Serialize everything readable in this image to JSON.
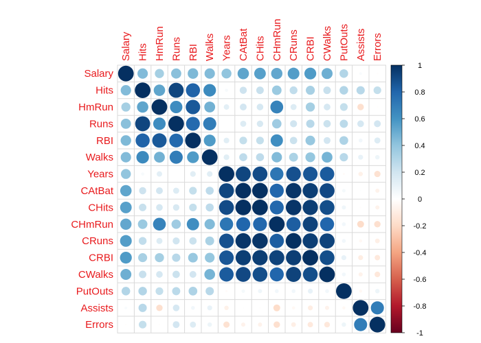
{
  "chart_data": {
    "type": "heatmap",
    "subtype": "correlation-circle",
    "variables": [
      "Salary",
      "Hits",
      "HmRun",
      "Runs",
      "RBI",
      "Walks",
      "Years",
      "CAtBat",
      "CHits",
      "CHmRun",
      "CRuns",
      "CRBI",
      "CWalks",
      "PutOuts",
      "Assists",
      "Errors"
    ],
    "matrix": [
      [
        1.0,
        0.44,
        0.34,
        0.42,
        0.45,
        0.44,
        0.4,
        0.53,
        0.55,
        0.52,
        0.56,
        0.57,
        0.49,
        0.3,
        0.03,
        -0.01
      ],
      [
        0.44,
        1.0,
        0.53,
        0.92,
        0.81,
        0.64,
        0.04,
        0.21,
        0.23,
        0.37,
        0.25,
        0.33,
        0.23,
        0.3,
        0.28,
        0.24
      ],
      [
        0.34,
        0.53,
        1.0,
        0.63,
        0.85,
        0.48,
        0.12,
        0.19,
        0.18,
        0.67,
        0.15,
        0.34,
        0.18,
        0.24,
        -0.17,
        -0.01
      ],
      [
        0.42,
        0.92,
        0.63,
        1.0,
        0.78,
        0.7,
        0.0,
        0.15,
        0.17,
        0.36,
        0.2,
        0.28,
        0.22,
        0.27,
        0.18,
        0.19
      ],
      [
        0.45,
        0.81,
        0.85,
        0.78,
        1.0,
        0.57,
        0.13,
        0.24,
        0.24,
        0.62,
        0.22,
        0.38,
        0.19,
        0.31,
        0.06,
        0.15
      ],
      [
        0.44,
        0.64,
        0.48,
        0.7,
        0.57,
        1.0,
        0.13,
        0.26,
        0.26,
        0.44,
        0.32,
        0.39,
        0.47,
        0.28,
        0.1,
        0.08
      ],
      [
        0.4,
        0.04,
        0.12,
        0.0,
        0.13,
        0.13,
        1.0,
        0.92,
        0.9,
        0.73,
        0.88,
        0.86,
        0.84,
        -0.02,
        -0.08,
        -0.16
      ],
      [
        0.53,
        0.21,
        0.19,
        0.15,
        0.24,
        0.26,
        0.92,
        1.0,
        1.0,
        0.8,
        0.98,
        0.95,
        0.91,
        0.05,
        0.01,
        -0.07
      ],
      [
        0.55,
        0.23,
        0.18,
        0.17,
        0.24,
        0.26,
        0.9,
        1.0,
        1.0,
        0.79,
        0.98,
        0.95,
        0.89,
        0.07,
        -0.01,
        -0.07
      ],
      [
        0.52,
        0.37,
        0.67,
        0.36,
        0.62,
        0.44,
        0.73,
        0.8,
        0.79,
        1.0,
        0.83,
        0.93,
        0.8,
        0.06,
        -0.19,
        -0.17
      ],
      [
        0.56,
        0.25,
        0.15,
        0.2,
        0.22,
        0.32,
        0.88,
        0.98,
        0.98,
        0.83,
        1.0,
        0.95,
        0.93,
        0.06,
        -0.04,
        -0.09
      ],
      [
        0.57,
        0.33,
        0.34,
        0.28,
        0.38,
        0.39,
        0.86,
        0.95,
        0.95,
        0.93,
        0.95,
        1.0,
        0.89,
        0.1,
        -0.1,
        -0.12
      ],
      [
        0.49,
        0.23,
        0.18,
        0.22,
        0.19,
        0.47,
        0.84,
        0.91,
        0.89,
        0.8,
        0.93,
        0.89,
        1.0,
        0.06,
        -0.07,
        -0.13
      ],
      [
        0.3,
        0.3,
        0.24,
        0.27,
        0.31,
        0.28,
        -0.02,
        0.05,
        0.07,
        0.06,
        0.06,
        0.1,
        0.06,
        1.0,
        -0.04,
        0.08
      ],
      [
        0.03,
        0.28,
        -0.17,
        0.18,
        0.06,
        0.1,
        -0.08,
        0.01,
        -0.01,
        -0.19,
        -0.04,
        -0.1,
        -0.07,
        -0.04,
        1.0,
        0.7
      ],
      [
        -0.01,
        0.24,
        -0.01,
        0.19,
        0.15,
        0.08,
        -0.16,
        -0.07,
        -0.07,
        -0.17,
        -0.09,
        -0.12,
        -0.13,
        0.08,
        0.7,
        1.0
      ]
    ],
    "colorbar": {
      "range": [
        -1,
        1
      ],
      "ticks": [
        1,
        0.8,
        0.6,
        0.4,
        0.2,
        0,
        -0.2,
        -0.4,
        -0.6,
        -0.8,
        -1
      ],
      "tick_labels": [
        "1",
        "0.8",
        "0.6",
        "0.4",
        "0.2",
        "0",
        "-0.2",
        "-0.4",
        "-0.6",
        "-0.8",
        "-1"
      ],
      "colors": [
        "#67001F",
        "#B2182B",
        "#D6604D",
        "#F4A582",
        "#FDDBC7",
        "#FFFFFF",
        "#D1E5F0",
        "#92C5DE",
        "#4393C3",
        "#2166AC",
        "#053061"
      ]
    },
    "label_color": "#E8191C"
  }
}
